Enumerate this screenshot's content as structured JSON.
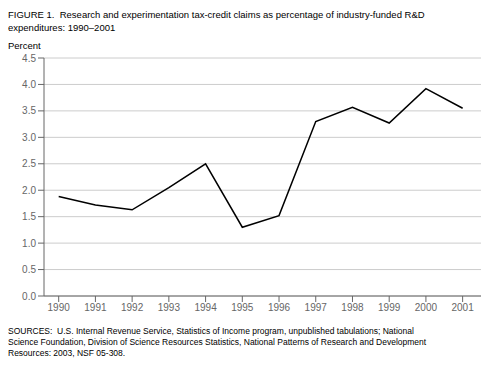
{
  "chart_data": {
    "type": "line",
    "title": [
      "FIGURE 1.  Research and experimentation tax-credit claims as percentage of industry-funded R&D",
      "expenditures: 1990–2001"
    ],
    "ylabel": "Percent",
    "annotations": [
      "SOURCES:  U.S. Internal Revenue Service, Statistics of Income program, unpublished tabulations; National",
      "Science Foundation, Division of Science Resources Statistics, National Patterns of Research and Development",
      "Resources: 2003, NSF 05-308."
    ],
    "x": [
      1990,
      1991,
      1992,
      1993,
      1994,
      1995,
      1996,
      1997,
      1998,
      1999,
      2000,
      2001
    ],
    "values": [
      1.88,
      1.72,
      1.63,
      2.05,
      2.5,
      1.3,
      1.52,
      3.3,
      3.57,
      3.27,
      3.92,
      3.55
    ],
    "color": "#000000",
    "xlim": [
      1989.6,
      2001.5
    ],
    "xticks": [
      1990,
      1991,
      1992,
      1993,
      1994,
      1995,
      1996,
      1997,
      1998,
      1999,
      2000,
      2001
    ],
    "ylim": [
      0,
      4.5
    ],
    "yticks": [
      {
        "value": 0,
        "label": "0.0"
      },
      0.5,
      {
        "value": 1,
        "label": "1.0"
      },
      1.5,
      {
        "value": 2,
        "label": "2.0"
      },
      2.5,
      {
        "value": 3,
        "label": "3.0"
      },
      3.5,
      {
        "value": 4,
        "label": "4.0"
      },
      4.5
    ],
    "grid": "y"
  }
}
